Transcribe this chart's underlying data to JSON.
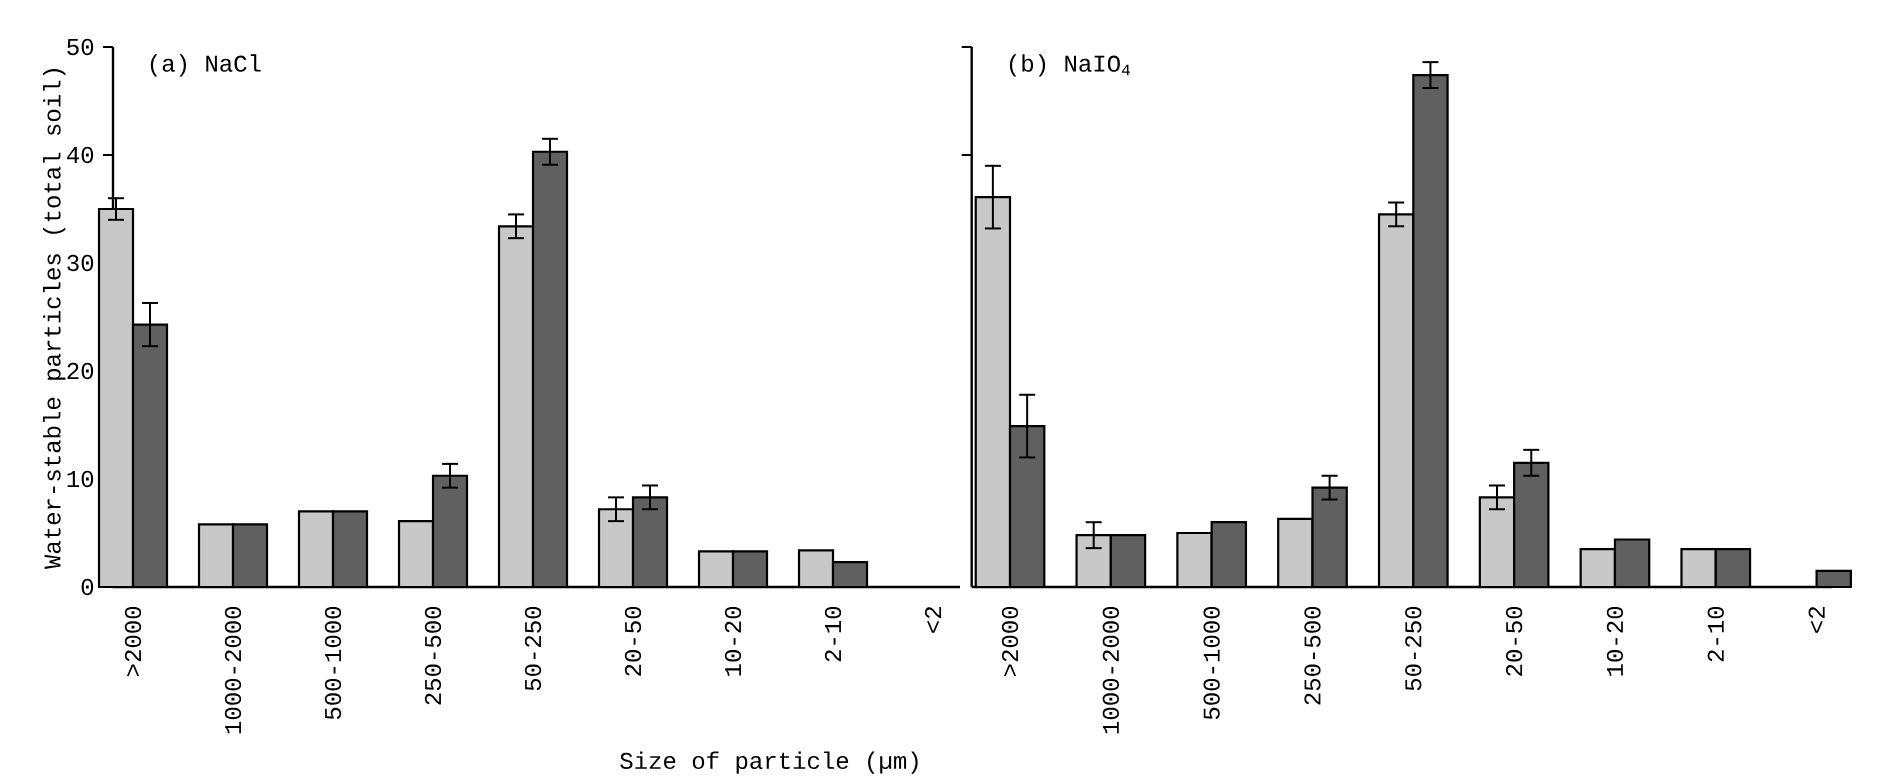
{
  "chart_data": [
    {
      "type": "bar",
      "title": "(a) NaCl",
      "xlabel": "Size of particle (µm)",
      "ylabel": "Water-stable particles (total soil)",
      "categories": [
        ">2000",
        "1000-2000",
        "500-1000",
        "250-500",
        "50-250",
        "20-50",
        "10-20",
        "2-10",
        "<2"
      ],
      "ylim": [
        0,
        50
      ],
      "yticks": [
        0,
        10,
        20,
        30,
        40,
        50
      ],
      "series": [
        {
          "color": "#c8c8c8",
          "values": [
            35,
            5.8,
            7.0,
            6.1,
            33.4,
            7.2,
            3.3,
            3.4,
            null
          ],
          "errors": [
            1,
            null,
            null,
            null,
            1.1,
            1.1,
            null,
            null,
            null
          ]
        },
        {
          "color": "#606060",
          "values": [
            24.3,
            5.8,
            7.0,
            10.3,
            40.3,
            8.3,
            3.3,
            2.3,
            null
          ],
          "errors": [
            2,
            null,
            null,
            1.1,
            1.2,
            1.1,
            null,
            null,
            null
          ]
        }
      ]
    },
    {
      "type": "bar",
      "title": "(b) NaIO$_{4}$",
      "categories": [
        ">2000",
        "1000-2000",
        "500-1000",
        "250-500",
        "50-250",
        "20-50",
        "10-20",
        "2-10",
        "<2"
      ],
      "ylim": [
        0,
        50
      ],
      "yticks": [
        {
          "value": 40,
          "label": null
        },
        {
          "value": 50,
          "label": null
        }
      ],
      "tick_labels": "x",
      "series": [
        {
          "color": "#c8c8c8",
          "values": [
            36.1,
            4.8,
            5.0,
            6.3,
            34.5,
            8.3,
            3.5,
            3.5,
            null
          ],
          "errors": [
            2.9,
            1.2,
            null,
            null,
            1.1,
            1.1,
            null,
            null,
            null
          ]
        },
        {
          "color": "#606060",
          "values": [
            14.9,
            4.8,
            6.0,
            9.2,
            47.4,
            11.5,
            4.4,
            3.5,
            1.5
          ],
          "errors": [
            2.9,
            null,
            null,
            1.1,
            1.2,
            1.2,
            null,
            null,
            null
          ]
        }
      ]
    }
  ]
}
